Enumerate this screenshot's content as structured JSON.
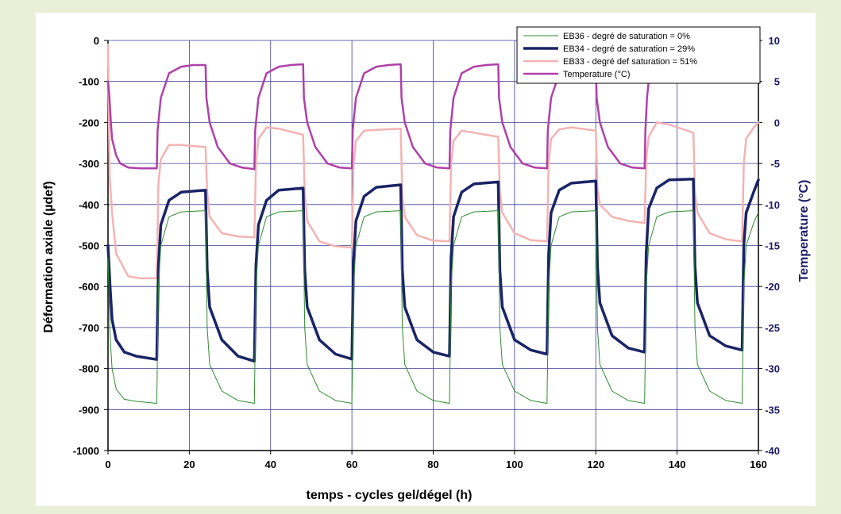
{
  "chart_data": {
    "type": "line",
    "xlabel": "temps - cycles gel/dégel (h)",
    "ylabel": "Déformation axiale (µdef)",
    "y2label": "Temperature (°C)",
    "xlim": [
      0,
      160
    ],
    "ylim": [
      -1000,
      0
    ],
    "y2lim": [
      -40,
      10
    ],
    "x_ticks": [
      0,
      20,
      40,
      60,
      80,
      100,
      120,
      140,
      160
    ],
    "y_ticks": [
      0,
      -100,
      -200,
      -300,
      -400,
      -500,
      -600,
      -700,
      -800,
      -900,
      -1000
    ],
    "y2_ticks": [
      10,
      5,
      0,
      -5,
      -10,
      -15,
      -20,
      -25,
      -30,
      -35,
      -40
    ],
    "grid": true,
    "legend_position": "top-right",
    "series": [
      {
        "name": "EB36 - degré de saturation = 0%",
        "color": "#2e8b2e",
        "axis": "left",
        "width": 1,
        "x": [
          0,
          0.5,
          1,
          2,
          4,
          7,
          12,
          12.4,
          13,
          15,
          18,
          24,
          24.4,
          25,
          28,
          32,
          36,
          36.4,
          37,
          39,
          42,
          48,
          48.4,
          49,
          52,
          56,
          60,
          60.4,
          61,
          63,
          66,
          72,
          72.4,
          73,
          76,
          80,
          84,
          84.4,
          85,
          87,
          90,
          96,
          96.4,
          97,
          100,
          104,
          108,
          108.4,
          109,
          111,
          114,
          120,
          120.4,
          121,
          124,
          128,
          132,
          132.4,
          133,
          135,
          138,
          144,
          144.4,
          145,
          148,
          152,
          156,
          156.4,
          157,
          159,
          160
        ],
        "values": [
          -530,
          -720,
          -800,
          -850,
          -875,
          -880,
          -885,
          -600,
          -500,
          -430,
          -418,
          -415,
          -700,
          -790,
          -855,
          -878,
          -885,
          -600,
          -500,
          -430,
          -418,
          -415,
          -700,
          -790,
          -855,
          -878,
          -885,
          -600,
          -500,
          -430,
          -418,
          -415,
          -700,
          -790,
          -855,
          -878,
          -885,
          -600,
          -500,
          -430,
          -418,
          -415,
          -700,
          -790,
          -855,
          -878,
          -885,
          -600,
          -500,
          -430,
          -418,
          -415,
          -700,
          -790,
          -855,
          -878,
          -885,
          -600,
          -500,
          -430,
          -418,
          -415,
          -700,
          -790,
          -855,
          -878,
          -885,
          -600,
          -500,
          -440,
          -420
        ]
      },
      {
        "name": "EB34 - degré de saturation = 29%",
        "color": "#1a2466",
        "axis": "left",
        "width": 3.5,
        "x": [
          0,
          0.5,
          1,
          2,
          4,
          7,
          12,
          12.4,
          13,
          15,
          18,
          24,
          24.4,
          25,
          28,
          32,
          36,
          36.4,
          37,
          39,
          42,
          48,
          48.4,
          49,
          52,
          56,
          60,
          60.4,
          61,
          63,
          66,
          72,
          72.4,
          73,
          76,
          80,
          84,
          84.4,
          85,
          87,
          90,
          96,
          96.4,
          97,
          100,
          104,
          108,
          108.4,
          109,
          111,
          114,
          120,
          120.4,
          121,
          124,
          128,
          132,
          132.4,
          133,
          135,
          138,
          144,
          144.4,
          145,
          148,
          152,
          156,
          156.4,
          157,
          159,
          160
        ],
        "values": [
          -500,
          -600,
          -680,
          -730,
          -760,
          -770,
          -778,
          -550,
          -450,
          -390,
          -370,
          -365,
          -560,
          -650,
          -730,
          -770,
          -782,
          -550,
          -450,
          -390,
          -365,
          -360,
          -560,
          -650,
          -730,
          -765,
          -777,
          -540,
          -440,
          -380,
          -358,
          -352,
          -560,
          -650,
          -730,
          -760,
          -770,
          -530,
          -430,
          -370,
          -350,
          -345,
          -560,
          -650,
          -730,
          -755,
          -765,
          -520,
          -420,
          -365,
          -348,
          -343,
          -550,
          -640,
          -720,
          -750,
          -760,
          -520,
          -410,
          -360,
          -340,
          -338,
          -550,
          -640,
          -720,
          -745,
          -755,
          -500,
          -420,
          -365,
          -340
        ]
      },
      {
        "name": "EB33 - degré def saturation = 51%",
        "color": "#f4b3b3",
        "axis": "left",
        "width": 2.5,
        "x": [
          0,
          0.4,
          1,
          2,
          5,
          8,
          12,
          12.4,
          13,
          15,
          18,
          24,
          24.4,
          25,
          28,
          32,
          36,
          36.4,
          37,
          39,
          42,
          48,
          48.4,
          49,
          52,
          56,
          60,
          60.4,
          61,
          63,
          66,
          72,
          72.4,
          73,
          76,
          80,
          84,
          84.4,
          85,
          87,
          90,
          96,
          96.4,
          97,
          100,
          104,
          108,
          108.4,
          109,
          111,
          114,
          120,
          120.4,
          121,
          124,
          128,
          132,
          132.4,
          133,
          135,
          138,
          144,
          144.4,
          145,
          148,
          152,
          156,
          156.4,
          157,
          159,
          160
        ],
        "values": [
          -10,
          -330,
          -420,
          -520,
          -575,
          -580,
          -580,
          -350,
          -290,
          -255,
          -255,
          -260,
          -370,
          -430,
          -470,
          -478,
          -480,
          -300,
          -240,
          -212,
          -215,
          -230,
          -370,
          -440,
          -490,
          -502,
          -505,
          -300,
          -245,
          -220,
          -218,
          -215,
          -380,
          -430,
          -475,
          -488,
          -490,
          -300,
          -245,
          -220,
          -225,
          -235,
          -370,
          -420,
          -470,
          -487,
          -490,
          -300,
          -240,
          -217,
          -212,
          -220,
          -360,
          -400,
          -430,
          -440,
          -445,
          -290,
          -235,
          -200,
          -205,
          -225,
          -370,
          -420,
          -470,
          -485,
          -490,
          -300,
          -240,
          -210,
          -200
        ]
      },
      {
        "name": "Temperature (°C)",
        "color": "#b040a8",
        "axis": "right",
        "width": 2.5,
        "x": [
          0,
          0.3,
          0.7,
          1,
          2,
          3,
          5,
          8,
          12,
          12.2,
          13,
          15,
          18,
          21,
          24,
          24.2,
          25,
          27,
          30,
          33,
          36,
          36.2,
          37,
          39,
          42,
          45,
          48,
          48.2,
          49,
          51,
          54,
          57,
          60,
          60.2,
          61,
          63,
          66,
          69,
          72,
          72.2,
          73,
          75,
          78,
          81,
          84,
          84.2,
          85,
          87,
          90,
          93,
          96,
          96.2,
          97,
          99,
          102,
          105,
          108,
          108.2,
          109,
          111,
          114,
          117,
          120,
          120.2,
          121,
          123,
          126,
          129,
          132,
          132.2,
          132.6,
          133
        ],
        "values": [
          5,
          3.5,
          0,
          -2,
          -4,
          -5,
          -5.5,
          -5.6,
          -5.6,
          -1,
          3,
          6,
          6.8,
          7,
          7,
          3,
          0,
          -3,
          -5,
          -5.5,
          -5.7,
          -1,
          3,
          6,
          6.8,
          7,
          7.1,
          3,
          0,
          -3,
          -5,
          -5.5,
          -5.6,
          -1,
          3,
          6,
          6.8,
          7,
          7.1,
          3,
          0,
          -3,
          -5,
          -5.5,
          -5.6,
          -1,
          3,
          6,
          6.8,
          7,
          7.1,
          3,
          0,
          -3,
          -5,
          -5.5,
          -5.6,
          -1,
          3,
          6,
          6.8,
          7,
          7.1,
          3,
          0,
          -3,
          -5,
          -5.5,
          -5.6,
          -1,
          3,
          5
        ]
      }
    ]
  }
}
